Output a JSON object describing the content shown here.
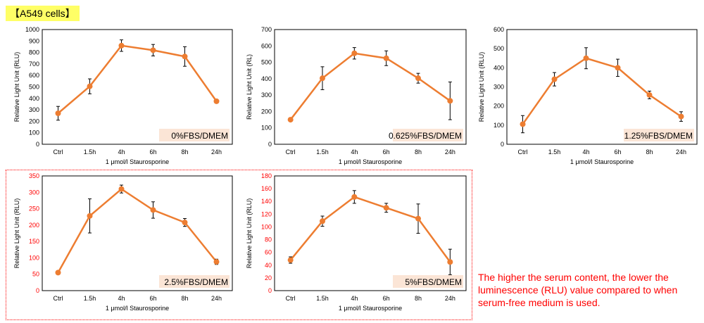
{
  "header": {
    "label": "【A549 cells】"
  },
  "note": "The higher the serum content, the lower the luminescence (RLU) value compared to when serum-free medium is used.",
  "colors": {
    "series": "#ed7d31",
    "highlight": "#ff0000",
    "axis_text": "#000000",
    "frame": "#000000"
  },
  "chart_data": [
    {
      "type": "line",
      "categories": [
        "Ctrl",
        "1.5h",
        "4h",
        "6h",
        "8h",
        "24h"
      ],
      "series": [
        {
          "values": [
            270,
            505,
            860,
            820,
            765,
            375
          ],
          "errors": [
            60,
            65,
            50,
            50,
            85,
            5
          ]
        }
      ],
      "ylabel": "Relative Light Unit (RLU)",
      "xlabel": "1 μmol/l Staurosporine",
      "condition": "0%FBS/DMEM",
      "ylim": [
        0,
        1000
      ],
      "yticks": [
        0,
        100,
        200,
        300,
        400,
        500,
        600,
        700,
        800,
        900,
        1000
      ],
      "ytick_color": "#000000"
    },
    {
      "type": "line",
      "categories": [
        "Ctrl",
        "1.5h",
        "4h",
        "6h",
        "8h",
        "24h"
      ],
      "series": [
        {
          "values": [
            150,
            403,
            555,
            525,
            403,
            265
          ],
          "errors": [
            5,
            70,
            35,
            45,
            30,
            115
          ]
        }
      ],
      "ylabel": "Relative Light Unit (RL)",
      "xlabel": "1 μmol/l Staurosporine",
      "condition": "0.625%FBS/DMEM",
      "ylim": [
        0,
        700
      ],
      "yticks": [
        0,
        100,
        200,
        300,
        400,
        500,
        600,
        700
      ],
      "ytick_color": "#000000"
    },
    {
      "type": "line",
      "categories": [
        "Ctrl",
        "1.5h",
        "4h",
        "6h",
        "8h",
        "24h"
      ],
      "series": [
        {
          "values": [
            105,
            340,
            450,
            400,
            258,
            145
          ],
          "errors": [
            45,
            35,
            55,
            45,
            20,
            25
          ]
        }
      ],
      "ylabel": "Relative Light Unit (RLU)",
      "xlabel": "1 μmol/l Staurosporine",
      "condition": "1.25%FBS/DMEM",
      "ylim": [
        0,
        600
      ],
      "yticks": [
        0,
        100,
        200,
        300,
        400,
        500,
        600
      ],
      "ytick_color": "#000000"
    },
    {
      "type": "line",
      "categories": [
        "Ctrl",
        "1.5h",
        "4h",
        "6h",
        "8h",
        "24h"
      ],
      "series": [
        {
          "values": [
            55,
            228,
            310,
            246,
            208,
            88
          ],
          "errors": [
            3,
            52,
            12,
            25,
            12,
            8
          ]
        }
      ],
      "ylabel": "Relative Light Unit (RLU)",
      "xlabel": "1 μmol/l Staurosporine",
      "condition": "2.5%FBS/DMEM",
      "ylim": [
        0,
        350
      ],
      "yticks": [
        0,
        50,
        100,
        150,
        200,
        250,
        300,
        350
      ],
      "ytick_color": "#ff0000"
    },
    {
      "type": "line",
      "categories": [
        "Ctrl",
        "1.5h",
        "4h",
        "6h",
        "8h",
        "24h"
      ],
      "series": [
        {
          "values": [
            48,
            109,
            147,
            130,
            113,
            45
          ],
          "errors": [
            5,
            8,
            10,
            7,
            23,
            20
          ]
        }
      ],
      "ylabel": "Relative Light Unit (RLU)",
      "xlabel": "1 μmol/l Staurosporine",
      "condition": "5%FBS/DMEM",
      "ylim": [
        0,
        180
      ],
      "yticks": [
        0,
        20,
        40,
        60,
        80,
        100,
        120,
        140,
        160,
        180
      ],
      "ytick_color": "#ff0000"
    }
  ]
}
